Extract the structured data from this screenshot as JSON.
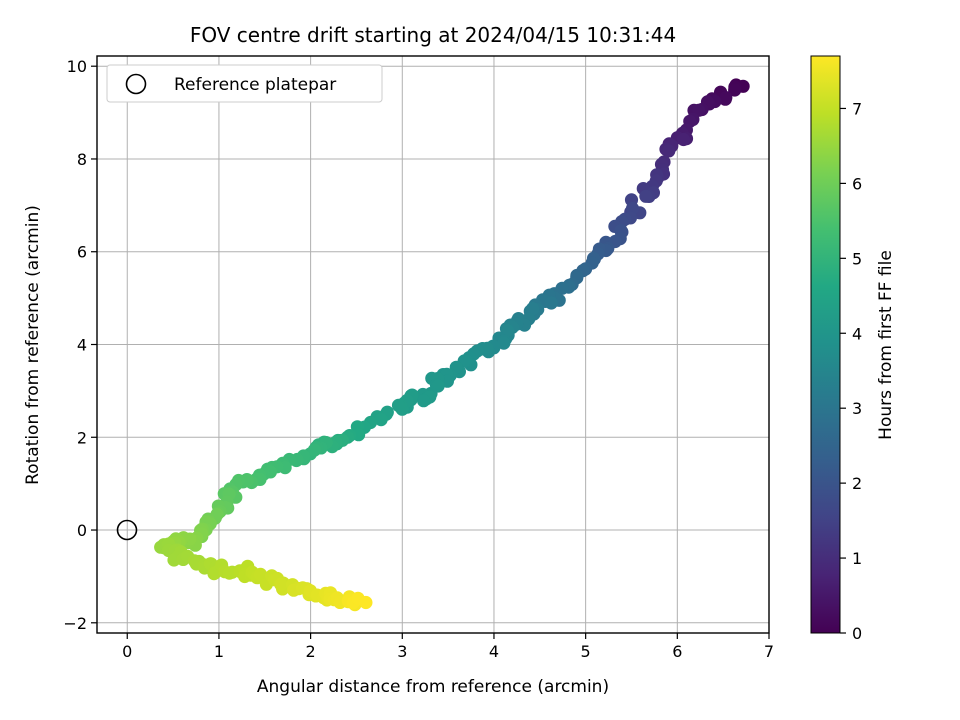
{
  "chart_data": {
    "type": "scatter",
    "title": "FOV centre drift starting at 2024/04/15 10:31:44",
    "xlabel": "Angular distance from reference (arcmin)",
    "ylabel": "Rotation from reference (arcmin)",
    "xlim": [
      -0.33,
      7.0
    ],
    "ylim": [
      -2.22,
      10.22
    ],
    "xticks": [
      0,
      1,
      2,
      3,
      4,
      5,
      6,
      7
    ],
    "yticks": [
      -2,
      0,
      2,
      4,
      6,
      8,
      10
    ],
    "grid": true,
    "legend": {
      "placement": "top-left",
      "entries": [
        "Reference platepar"
      ]
    },
    "reference_point": {
      "x": 0,
      "y": 0
    },
    "colorbar": {
      "label": "Hours from first FF file",
      "colormap": "viridis",
      "range": [
        0,
        7.7
      ],
      "ticks": [
        0,
        1,
        2,
        3,
        4,
        5,
        6,
        7
      ]
    },
    "trajectory_anchors": [
      {
        "x": 6.68,
        "y": 9.63,
        "hours": 0.0
      },
      {
        "x": 6.2,
        "y": 8.95,
        "hours": 0.4
      },
      {
        "x": 5.85,
        "y": 7.9,
        "hours": 1.0
      },
      {
        "x": 5.55,
        "y": 6.9,
        "hours": 1.6
      },
      {
        "x": 5.2,
        "y": 6.0,
        "hours": 2.2
      },
      {
        "x": 4.7,
        "y": 5.1,
        "hours": 2.9
      },
      {
        "x": 4.35,
        "y": 4.6,
        "hours": 3.3
      },
      {
        "x": 4.05,
        "y": 4.05,
        "hours": 3.6
      },
      {
        "x": 3.6,
        "y": 3.55,
        "hours": 3.9
      },
      {
        "x": 3.3,
        "y": 3.0,
        "hours": 4.1
      },
      {
        "x": 2.9,
        "y": 2.6,
        "hours": 4.3
      },
      {
        "x": 2.3,
        "y": 1.9,
        "hours": 4.8
      },
      {
        "x": 2.05,
        "y": 1.75,
        "hours": 5.0
      },
      {
        "x": 1.6,
        "y": 1.3,
        "hours": 5.3
      },
      {
        "x": 1.2,
        "y": 0.9,
        "hours": 5.6
      },
      {
        "x": 0.95,
        "y": 0.3,
        "hours": 6.0
      },
      {
        "x": 0.8,
        "y": -0.2,
        "hours": 6.3
      },
      {
        "x": 0.4,
        "y": -0.3,
        "hours": 6.5
      },
      {
        "x": 0.6,
        "y": -0.6,
        "hours": 6.6
      },
      {
        "x": 1.0,
        "y": -0.85,
        "hours": 6.8
      },
      {
        "x": 1.4,
        "y": -0.95,
        "hours": 7.0
      },
      {
        "x": 1.8,
        "y": -1.25,
        "hours": 7.2
      },
      {
        "x": 2.2,
        "y": -1.45,
        "hours": 7.45
      },
      {
        "x": 2.58,
        "y": -1.58,
        "hours": 7.7
      }
    ],
    "points_count": 300
  }
}
